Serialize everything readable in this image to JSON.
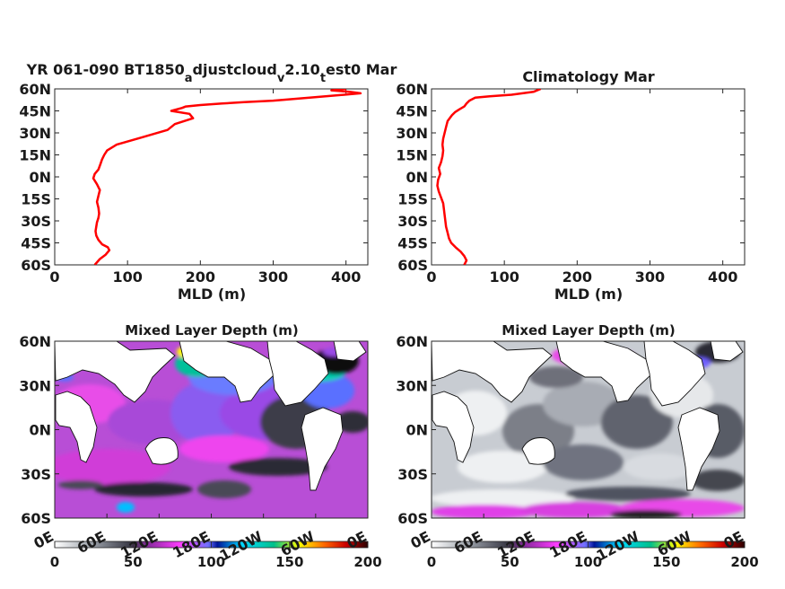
{
  "chart_data": [
    {
      "type": "line",
      "title_main": "YR 061-090 BT1850",
      "title_segments": [
        {
          "text": "a",
          "sub": true
        },
        {
          "text": "djustcloud",
          "sub": false
        },
        {
          "text": "v",
          "sub": true
        },
        {
          "text": "2.10",
          "sub": false
        },
        {
          "text": "t",
          "sub": true
        },
        {
          "text": "est0 Mar",
          "sub": false
        }
      ],
      "xlabel": "MLD (m)",
      "xlim": [
        0,
        430
      ],
      "ylim": [
        -60,
        60
      ],
      "xticks": [
        0,
        100,
        200,
        300,
        400
      ],
      "yticks": [
        60,
        45,
        30,
        15,
        0,
        -15,
        -30,
        -45,
        -60
      ],
      "yticklabels": [
        "60N",
        "45N",
        "30N",
        "15N",
        "0N",
        "15S",
        "30S",
        "45S",
        "60S"
      ],
      "line_color": "#ff0000",
      "series": [
        {
          "x": [
            55,
            62,
            70,
            75,
            73,
            65,
            60,
            57,
            56,
            57,
            58,
            60,
            61,
            60,
            58,
            60,
            62,
            58,
            53,
            55,
            60,
            63,
            65,
            68,
            72,
            85,
            120,
            155,
            165,
            190,
            185,
            160,
            175,
            180,
            200,
            230,
            260,
            300,
            350,
            420,
            405,
            380,
            400
          ],
          "y": [
            -60,
            -56,
            -53,
            -50,
            -48,
            -46,
            -43,
            -40,
            -37,
            -34,
            -31,
            -28,
            -25,
            -21,
            -17,
            -13,
            -9,
            -5,
            -1,
            2,
            5,
            9,
            12,
            15,
            18,
            22,
            27,
            32,
            36,
            40,
            43,
            45,
            47,
            48,
            49,
            50,
            51,
            52,
            54,
            57,
            58,
            59,
            60
          ]
        }
      ]
    },
    {
      "type": "line",
      "title": "Climatology Mar",
      "xlabel": "MLD (m)",
      "xlim": [
        0,
        430
      ],
      "ylim": [
        -60,
        60
      ],
      "xticks": [
        0,
        100,
        200,
        300,
        400
      ],
      "yticks": [
        60,
        45,
        30,
        15,
        0,
        -15,
        -30,
        -45,
        -60
      ],
      "yticklabels": [
        "60N",
        "45N",
        "30N",
        "15N",
        "0N",
        "15S",
        "30S",
        "45S",
        "60S"
      ],
      "line_color": "#ff0000",
      "series": [
        {
          "x": [
            45,
            48,
            45,
            40,
            33,
            27,
            24,
            22,
            20,
            19,
            18,
            17,
            16,
            13,
            10,
            8,
            9,
            12,
            10,
            13,
            15,
            16,
            15,
            16,
            18,
            20,
            22,
            28,
            32,
            38,
            45,
            48,
            52,
            60,
            80,
            110,
            140,
            150
          ],
          "y": [
            -60,
            -57,
            -54,
            -51,
            -48,
            -45,
            -42,
            -38,
            -34,
            -30,
            -26,
            -22,
            -18,
            -14,
            -10,
            -6,
            -2,
            2,
            6,
            10,
            14,
            18,
            22,
            26,
            30,
            34,
            38,
            42,
            44,
            46,
            48,
            50,
            52,
            54,
            55,
            56,
            58,
            60
          ]
        }
      ]
    },
    {
      "type": "heatmap",
      "title": "Mixed Layer Depth (m)",
      "xticklabels": [
        "0E",
        "60E",
        "120E",
        "180E",
        "120W",
        "60W",
        "0E"
      ],
      "yticklabels": [
        "60N",
        "30N",
        "0N",
        "30S",
        "60S"
      ],
      "colorbar_ticks": [
        0,
        50,
        100,
        150,
        200
      ],
      "clim": [
        0,
        200
      ]
    },
    {
      "type": "heatmap",
      "title": "Mixed Layer Depth (m)",
      "xticklabels": [
        "0E",
        "60E",
        "120E",
        "180E",
        "120W",
        "60W",
        "0E"
      ],
      "yticklabels": [
        "60N",
        "30N",
        "0N",
        "30S",
        "60S"
      ],
      "colorbar_ticks": [
        0,
        50,
        100,
        150,
        200
      ],
      "clim": [
        0,
        200
      ]
    }
  ],
  "colormap": [
    "#ffffff",
    "#9aa0a8",
    "#3a3a46",
    "#8a2aa0",
    "#ff3cff",
    "#7070ff",
    "#00169a",
    "#00d8ff",
    "#00c08a",
    "#ffff00",
    "#ff6a00",
    "#cc0000",
    "#2a0000"
  ]
}
